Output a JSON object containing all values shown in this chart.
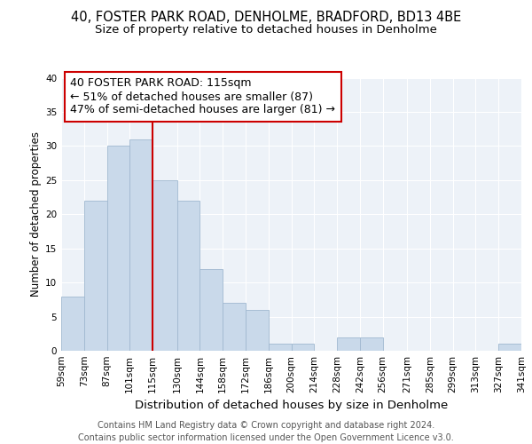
{
  "title": "40, FOSTER PARK ROAD, DENHOLME, BRADFORD, BD13 4BE",
  "subtitle": "Size of property relative to detached houses in Denholme",
  "xlabel": "Distribution of detached houses by size in Denholme",
  "ylabel": "Number of detached properties",
  "bin_edges": [
    59,
    73,
    87,
    101,
    115,
    130,
    144,
    158,
    172,
    186,
    200,
    214,
    228,
    242,
    256,
    271,
    285,
    299,
    313,
    327,
    341
  ],
  "bin_labels": [
    "59sqm",
    "73sqm",
    "87sqm",
    "101sqm",
    "115sqm",
    "130sqm",
    "144sqm",
    "158sqm",
    "172sqm",
    "186sqm",
    "200sqm",
    "214sqm",
    "228sqm",
    "242sqm",
    "256sqm",
    "271sqm",
    "285sqm",
    "299sqm",
    "313sqm",
    "327sqm",
    "341sqm"
  ],
  "counts": [
    8,
    22,
    30,
    31,
    25,
    22,
    12,
    7,
    6,
    1,
    1,
    0,
    2,
    2,
    0,
    0,
    0,
    0,
    0,
    1
  ],
  "bar_color": "#c9d9ea",
  "bar_edge_color": "#a0b8d0",
  "property_value": 115,
  "vline_color": "#cc0000",
  "annotation_line1": "40 FOSTER PARK ROAD: 115sqm",
  "annotation_line2": "← 51% of detached houses are smaller (87)",
  "annotation_line3": "47% of semi-detached houses are larger (81) →",
  "annotation_box_color": "#ffffff",
  "annotation_box_edge": "#cc0000",
  "ylim": [
    0,
    40
  ],
  "yticks": [
    0,
    5,
    10,
    15,
    20,
    25,
    30,
    35,
    40
  ],
  "background_color": "#edf2f8",
  "grid_color": "#ffffff",
  "footer_text": "Contains HM Land Registry data © Crown copyright and database right 2024.\nContains public sector information licensed under the Open Government Licence v3.0.",
  "title_fontsize": 10.5,
  "subtitle_fontsize": 9.5,
  "xlabel_fontsize": 9.5,
  "ylabel_fontsize": 8.5,
  "annotation_fontsize": 9,
  "footer_fontsize": 7,
  "tick_fontsize": 7.5
}
